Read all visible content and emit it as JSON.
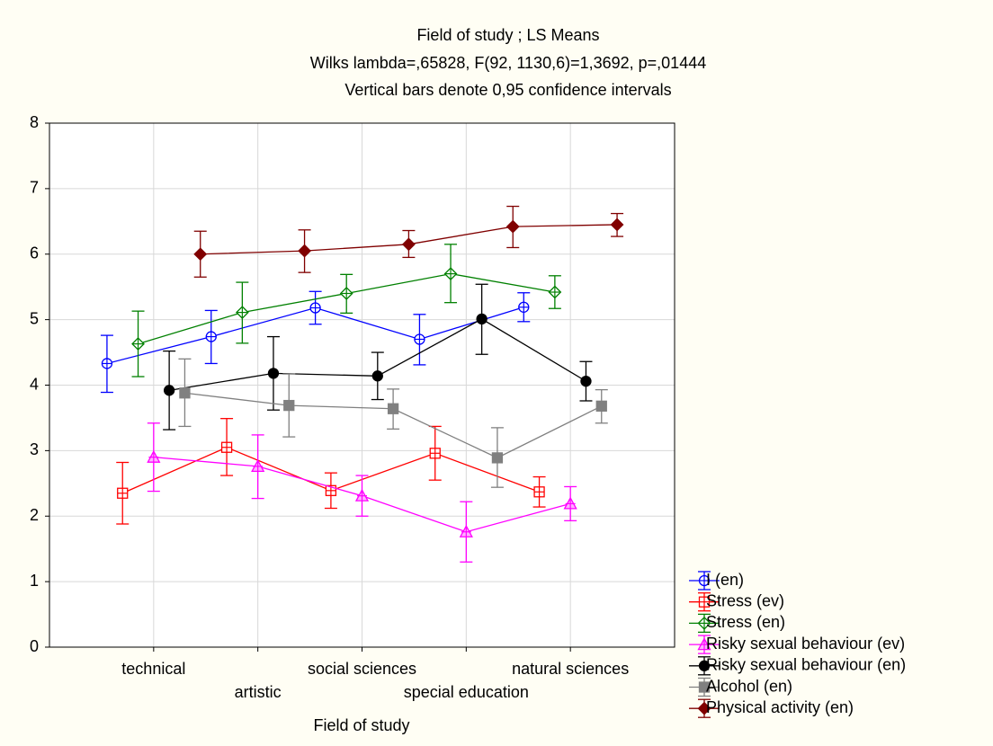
{
  "chart_data": {
    "type": "line-errorbar",
    "title": "Field of study ; LS Means",
    "subtitle": "Wilks lambda=,65828, F(92, 1130,6)=1,3692, p=,01444",
    "note": "Vertical bars denote 0,95 confidence intervals",
    "x_label": "Field of study",
    "categories": [
      "technical",
      "artistic",
      "social sciences",
      "special education",
      "natural sciences"
    ],
    "ylim": [
      0,
      8
    ],
    "yticks": [
      0,
      1,
      2,
      3,
      4,
      5,
      6,
      7,
      8
    ],
    "grid": true,
    "legend": "bottom-right",
    "series": [
      {
        "name": "I (en)",
        "color": "#0000ff",
        "marker": "circle-cross",
        "values": [
          4.33,
          4.74,
          5.18,
          4.7,
          5.19
        ],
        "ci_low": [
          3.89,
          4.33,
          4.93,
          4.31,
          4.97
        ],
        "ci_high": [
          4.76,
          5.14,
          5.43,
          5.08,
          5.41
        ]
      },
      {
        "name": "Stress (ev)",
        "color": "#ff0000",
        "marker": "square-cross",
        "values": [
          2.35,
          3.05,
          2.39,
          2.96,
          2.37
        ],
        "ci_low": [
          1.88,
          2.62,
          2.12,
          2.55,
          2.14
        ],
        "ci_high": [
          2.82,
          3.49,
          2.66,
          3.37,
          2.6
        ]
      },
      {
        "name": "Stress (en)",
        "color": "#008000",
        "marker": "diamond-cross",
        "values": [
          4.63,
          5.11,
          5.4,
          5.7,
          5.42
        ],
        "ci_low": [
          4.13,
          4.64,
          5.1,
          5.26,
          5.17
        ],
        "ci_high": [
          5.13,
          5.57,
          5.69,
          6.15,
          5.67
        ]
      },
      {
        "name": "Risky sexual behaviour (ev)",
        "color": "#ff00ff",
        "marker": "triangle-cross",
        "values": [
          2.9,
          2.76,
          2.31,
          1.76,
          2.19
        ],
        "ci_low": [
          2.38,
          2.27,
          2.0,
          1.3,
          1.93
        ],
        "ci_high": [
          3.42,
          3.24,
          2.62,
          2.22,
          2.45
        ]
      },
      {
        "name": "Risky sexual behaviour (en)",
        "color": "#000000",
        "marker": "circle",
        "values": [
          3.92,
          4.18,
          4.14,
          5.01,
          4.06
        ],
        "ci_low": [
          3.32,
          3.62,
          3.78,
          4.47,
          3.76
        ],
        "ci_high": [
          4.52,
          4.74,
          4.5,
          5.54,
          4.36
        ]
      },
      {
        "name": "Alcohol (en)",
        "color": "#808080",
        "marker": "square",
        "values": [
          3.88,
          3.69,
          3.64,
          2.89,
          3.68
        ],
        "ci_low": [
          3.37,
          3.21,
          3.33,
          2.44,
          3.42
        ],
        "ci_high": [
          4.4,
          4.17,
          3.94,
          3.35,
          3.93
        ]
      },
      {
        "name": "Physical activity (en)",
        "color": "#800000",
        "marker": "diamond",
        "values": [
          6.0,
          6.05,
          6.15,
          6.42,
          6.45
        ],
        "ci_low": [
          5.65,
          5.72,
          5.95,
          6.1,
          6.27
        ],
        "ci_high": [
          6.35,
          6.37,
          6.36,
          6.73,
          6.62
        ]
      }
    ]
  }
}
